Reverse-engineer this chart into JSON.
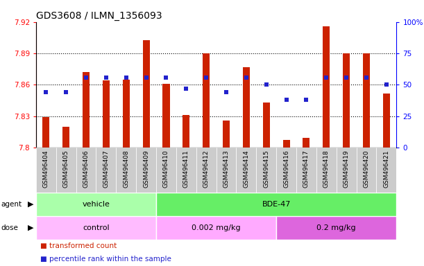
{
  "title": "GDS3608 / ILMN_1356093",
  "samples": [
    "GSM496404",
    "GSM496405",
    "GSM496406",
    "GSM496407",
    "GSM496408",
    "GSM496409",
    "GSM496410",
    "GSM496411",
    "GSM496412",
    "GSM496413",
    "GSM496414",
    "GSM496415",
    "GSM496416",
    "GSM496417",
    "GSM496418",
    "GSM496419",
    "GSM496420",
    "GSM496421"
  ],
  "transformed_count": [
    7.829,
    7.82,
    7.872,
    7.864,
    7.865,
    7.903,
    7.861,
    7.831,
    7.89,
    7.826,
    7.877,
    7.843,
    7.807,
    7.809,
    7.916,
    7.89,
    7.89,
    7.852
  ],
  "percentile_rank": [
    44,
    44,
    56,
    56,
    56,
    56,
    56,
    47,
    56,
    44,
    56,
    50,
    38,
    38,
    56,
    56,
    56,
    50
  ],
  "ylim_left": [
    7.8,
    7.92
  ],
  "ylim_right": [
    0,
    100
  ],
  "yticks_left": [
    7.8,
    7.83,
    7.86,
    7.89,
    7.92
  ],
  "yticks_right": [
    0,
    25,
    50,
    75,
    100
  ],
  "ytick_labels_left": [
    "7.8",
    "7.83",
    "7.86",
    "7.89",
    "7.92"
  ],
  "ytick_labels_right": [
    "0",
    "25",
    "50",
    "75",
    "100%"
  ],
  "bar_color": "#cc2200",
  "marker_color": "#2222cc",
  "plot_bg_color": "#ffffff",
  "xtick_bg_color": "#cccccc",
  "agent_groups": [
    {
      "label": "vehicle",
      "start": 0,
      "end": 6,
      "color": "#aaffaa"
    },
    {
      "label": "BDE-47",
      "start": 6,
      "end": 18,
      "color": "#66ee66"
    }
  ],
  "dose_groups": [
    {
      "label": "control",
      "start": 0,
      "end": 6,
      "color": "#ffbbff"
    },
    {
      "label": "0.002 mg/kg",
      "start": 6,
      "end": 12,
      "color": "#ffaaff"
    },
    {
      "label": "0.2 mg/kg",
      "start": 12,
      "end": 18,
      "color": "#dd66dd"
    }
  ],
  "legend_items": [
    {
      "color": "#cc2200",
      "label": "transformed count"
    },
    {
      "color": "#2222cc",
      "label": "percentile rank within the sample"
    }
  ],
  "grid_lines": [
    7.83,
    7.86,
    7.89
  ],
  "font_size_title": 10,
  "font_size_ticks": 7.5,
  "font_size_xticks": 6.5,
  "font_size_labels": 8,
  "bar_width": 0.35,
  "marker_size": 4
}
